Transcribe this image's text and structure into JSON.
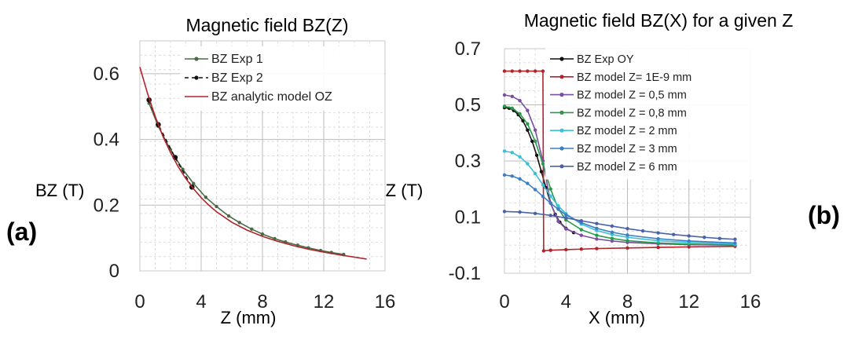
{
  "chart_data": [
    {
      "panel": "(a)",
      "type": "line",
      "title": "Magnetic field BZ(Z)",
      "xlabel": "Z (mm)",
      "ylabel": "BZ (T)",
      "xlim": [
        0,
        16
      ],
      "ylim": [
        0,
        0.7
      ],
      "xticks": [
        "0",
        "4",
        "8",
        "12",
        "16"
      ],
      "yticks": [
        {
          "value": 0,
          "label": "0"
        },
        {
          "value": 0.2,
          "label": "0.2"
        },
        {
          "value": 0.4,
          "label": "0.4"
        },
        {
          "value": 0.6,
          "label": "0.6"
        }
      ],
      "grid": true,
      "legend_position": "top-right",
      "series": [
        {
          "name": "BZ Exp 1",
          "color": "#4a6b46",
          "marker": "dot",
          "line": "solid",
          "x": [
            0.6,
            1.2,
            2.0,
            2.8,
            3.5,
            4.3,
            5.0,
            5.8,
            6.5,
            7.3,
            8.0,
            8.8,
            9.5,
            10.3,
            11.0,
            11.8,
            12.5,
            13.3
          ],
          "y": [
            0.51,
            0.44,
            0.368,
            0.309,
            0.266,
            0.224,
            0.196,
            0.167,
            0.147,
            0.127,
            0.112,
            0.098,
            0.088,
            0.078,
            0.07,
            0.062,
            0.056,
            0.05
          ]
        },
        {
          "name": "BZ Exp 2",
          "color": "#111111",
          "marker": "dot",
          "line": "dashed",
          "x": [
            0.6,
            1.2,
            2.3,
            3.4
          ],
          "y": [
            0.52,
            0.445,
            0.345,
            0.255
          ]
        },
        {
          "name": "BZ analytic model OZ",
          "color": "#b0242c",
          "marker": "none",
          "line": "solid",
          "x": [
            0,
            0.5,
            1,
            1.5,
            2,
            2.5,
            3,
            3.5,
            4,
            4.5,
            5,
            6,
            7,
            8,
            9,
            10,
            11,
            12,
            13,
            14,
            14.8
          ],
          "y": [
            0.62,
            0.54,
            0.47,
            0.41,
            0.36,
            0.317,
            0.281,
            0.25,
            0.223,
            0.2,
            0.18,
            0.148,
            0.124,
            0.105,
            0.09,
            0.077,
            0.066,
            0.057,
            0.049,
            0.042,
            0.036
          ]
        }
      ]
    },
    {
      "panel": "(b)",
      "type": "line",
      "title": "Magnetic field BZ(X) for a given Z",
      "xlabel": "X (mm)",
      "ylabel": "BZ (T)",
      "xlim": [
        0,
        16
      ],
      "ylim": [
        -0.1,
        0.7
      ],
      "xticks": [
        "0",
        "4",
        "8",
        "12",
        "16"
      ],
      "yticks": [
        {
          "value": -0.1,
          "label": "-0.1"
        },
        {
          "value": 0.1,
          "label": "0.1"
        },
        {
          "value": 0.3,
          "label": "0.3"
        },
        {
          "value": 0.5,
          "label": "0.5"
        },
        {
          "value": 0.7,
          "label": "0.7"
        }
      ],
      "grid": true,
      "legend_position": "top-right",
      "series": [
        {
          "name": "BZ Exp OY",
          "color": "#111111",
          "marker": "dot",
          "line": "solid",
          "x": [
            0,
            0.3,
            0.6,
            0.9,
            1.2,
            1.5,
            1.8,
            2.1,
            2.4,
            2.7,
            3.0,
            3.3,
            3.6,
            4.0,
            4.5
          ],
          "y": [
            0.49,
            0.488,
            0.48,
            0.465,
            0.443,
            0.41,
            0.37,
            0.32,
            0.262,
            0.205,
            0.15,
            0.11,
            0.082,
            0.06,
            0.045
          ]
        },
        {
          "name": "BZ model Z= 1E-9 mm",
          "color": "#b0242c",
          "marker": "dot",
          "line": "solid",
          "x": [
            0,
            0.5,
            1,
            1.5,
            2,
            2.5,
            2.55,
            3,
            4,
            5,
            6,
            8,
            10,
            12,
            15
          ],
          "y": [
            0.62,
            0.62,
            0.62,
            0.62,
            0.62,
            0.62,
            -0.02,
            -0.018,
            -0.016,
            -0.014,
            -0.012,
            -0.01,
            -0.008,
            -0.006,
            -0.004
          ]
        },
        {
          "name": "BZ model Z = 0,5 mm",
          "color": "#7a4fa0",
          "marker": "dot",
          "line": "solid",
          "x": [
            0,
            0.5,
            1,
            1.5,
            2,
            2.5,
            3,
            3.5,
            4,
            5,
            6,
            7,
            8,
            10,
            12,
            15
          ],
          "y": [
            0.535,
            0.53,
            0.515,
            0.48,
            0.41,
            0.3,
            0.15,
            0.085,
            0.058,
            0.035,
            0.022,
            0.015,
            0.01,
            0.005,
            0.002,
            0.0
          ]
        },
        {
          "name": "BZ model Z = 0,8 mm",
          "color": "#2a9a4a",
          "marker": "dot",
          "line": "solid",
          "x": [
            0,
            0.5,
            1,
            1.5,
            2,
            2.5,
            3,
            3.5,
            4,
            5,
            6,
            7,
            8,
            10,
            12,
            15
          ],
          "y": [
            0.495,
            0.488,
            0.468,
            0.432,
            0.37,
            0.29,
            0.2,
            0.13,
            0.09,
            0.055,
            0.035,
            0.024,
            0.016,
            0.008,
            0.004,
            0.001
          ]
        },
        {
          "name": "BZ model Z = 2 mm",
          "color": "#3cc0d8",
          "marker": "dot",
          "line": "solid",
          "x": [
            0,
            0.5,
            1,
            1.5,
            2,
            2.5,
            3,
            3.5,
            4,
            5,
            6,
            7,
            8,
            10,
            12,
            15
          ],
          "y": [
            0.335,
            0.33,
            0.315,
            0.29,
            0.255,
            0.215,
            0.175,
            0.14,
            0.112,
            0.075,
            0.052,
            0.038,
            0.028,
            0.016,
            0.01,
            0.004
          ]
        },
        {
          "name": "BZ model Z = 3 mm",
          "color": "#3b7fc4",
          "marker": "dot",
          "line": "solid",
          "x": [
            0,
            0.5,
            1,
            1.5,
            2,
            2.5,
            3,
            3.5,
            4,
            5,
            6,
            7,
            8,
            10,
            12,
            15
          ],
          "y": [
            0.25,
            0.246,
            0.236,
            0.22,
            0.198,
            0.174,
            0.15,
            0.128,
            0.108,
            0.08,
            0.06,
            0.046,
            0.036,
            0.023,
            0.015,
            0.008
          ]
        },
        {
          "name": "BZ model Z = 6 mm",
          "color": "#4a62a8",
          "marker": "dot",
          "line": "solid",
          "x": [
            0,
            1,
            2,
            3,
            4,
            5,
            6,
            7,
            8,
            9,
            10,
            11,
            12,
            13,
            14,
            15
          ],
          "y": [
            0.12,
            0.118,
            0.113,
            0.106,
            0.097,
            0.087,
            0.077,
            0.068,
            0.059,
            0.051,
            0.044,
            0.038,
            0.033,
            0.028,
            0.024,
            0.021
          ]
        }
      ]
    }
  ]
}
